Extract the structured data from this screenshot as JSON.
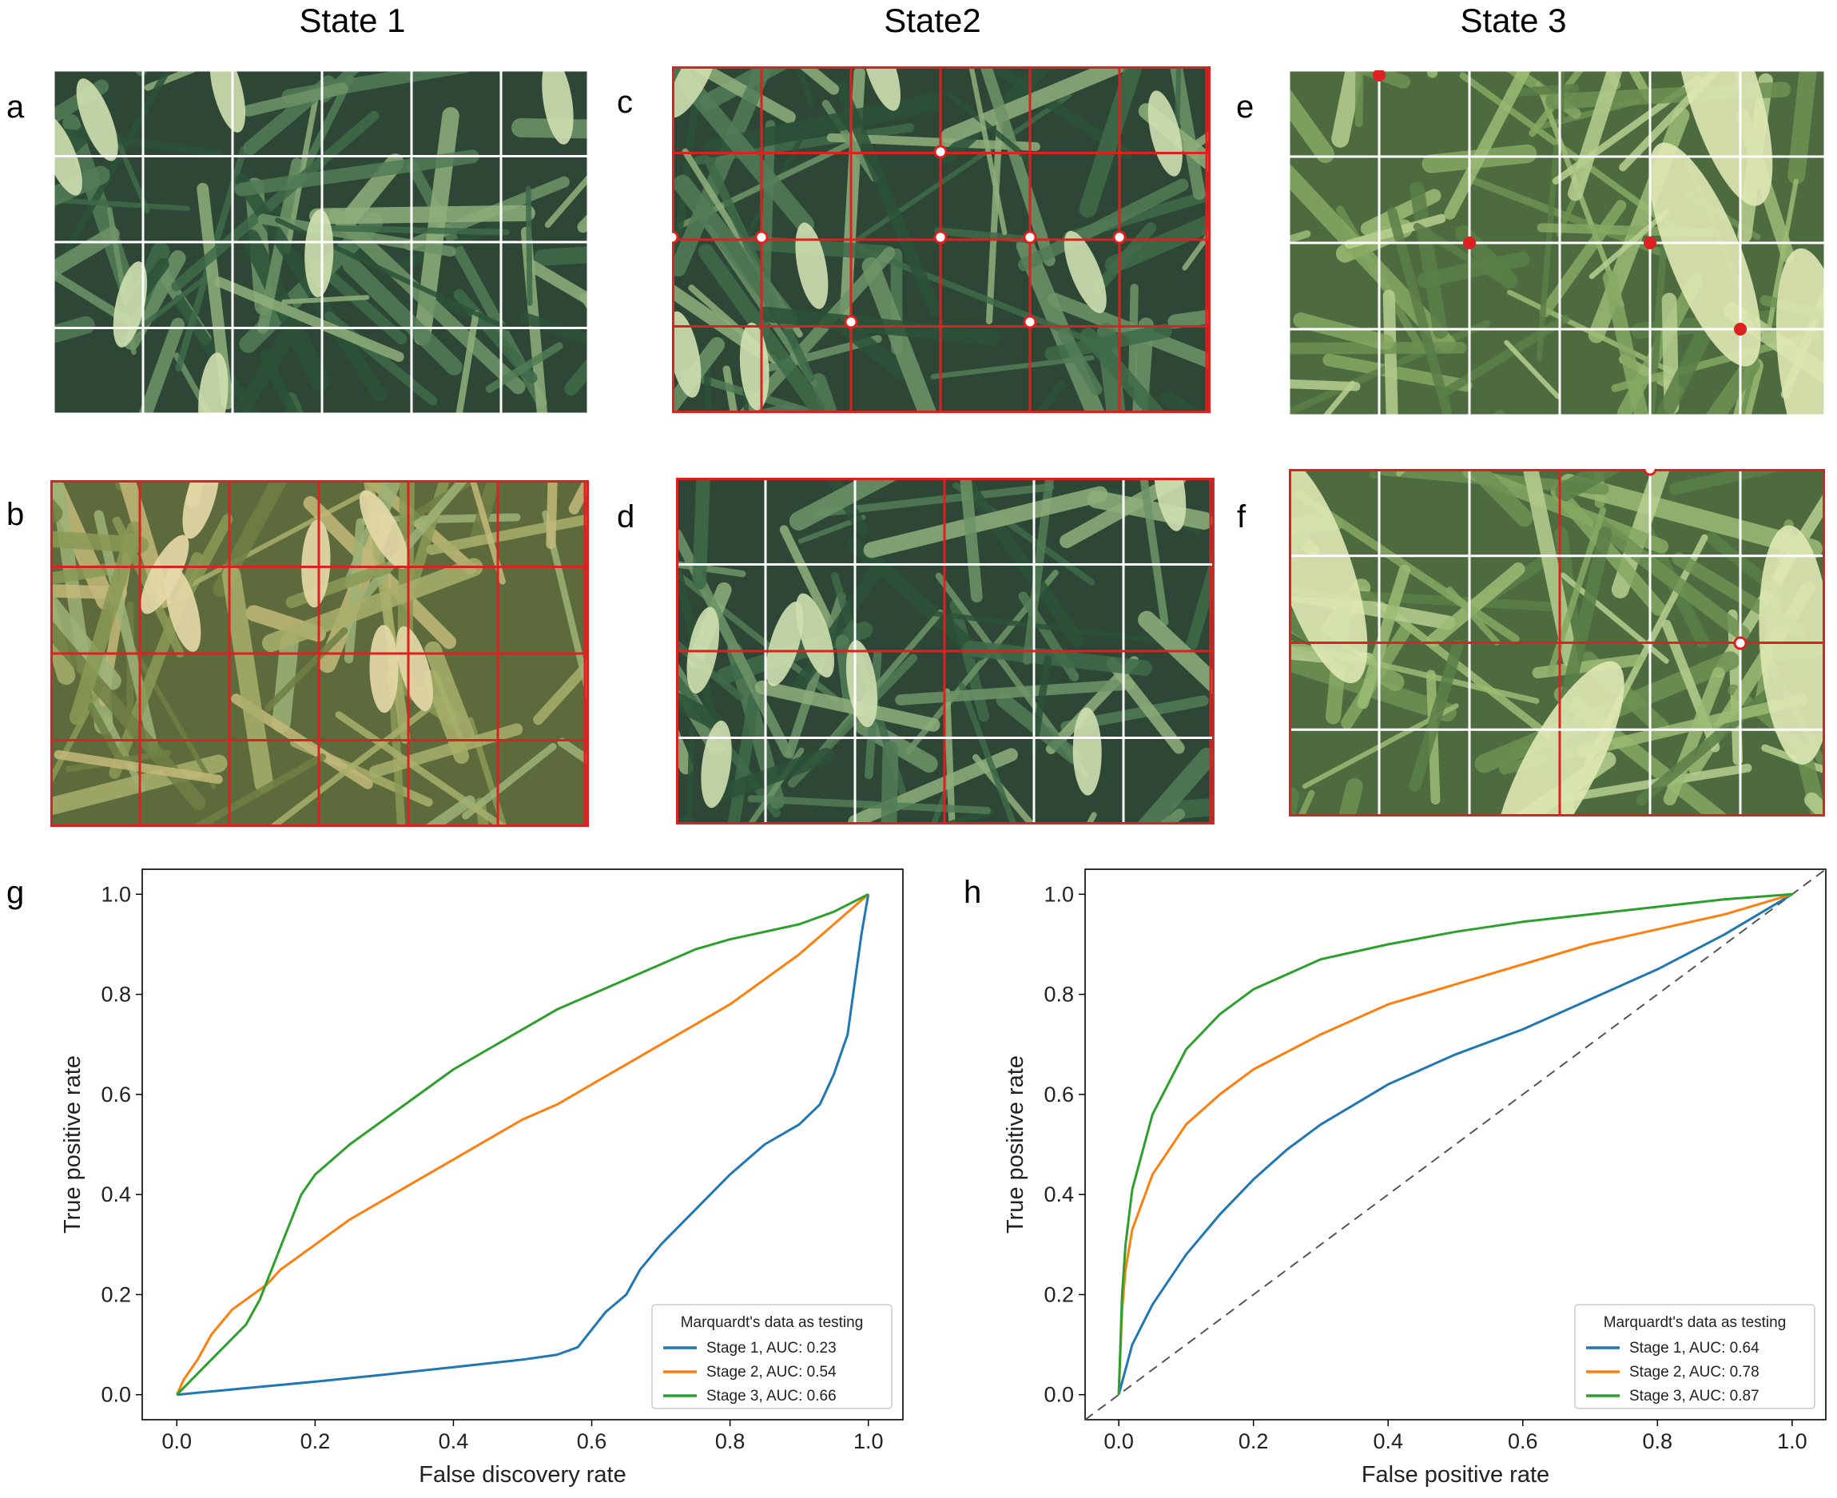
{
  "figure": {
    "state_titles": [
      "State 1",
      "State2",
      "State 3"
    ],
    "panel_letters": {
      "a": "a",
      "b": "b",
      "c": "c",
      "d": "d",
      "e": "e",
      "f": "f",
      "g": "g",
      "h": "h"
    },
    "colors": {
      "stage1": "#1f77b4",
      "stage2": "#ff7f0e",
      "stage3": "#2ca02c",
      "grid_white": "#ffffff",
      "grid_red": "#dd2020",
      "canopy_dark": "#27402f",
      "canopy_light": "#b9cf9a"
    },
    "photos": [
      {
        "id": "a",
        "grid": "white",
        "tone": "dark-canopy",
        "markers": "none"
      },
      {
        "id": "b",
        "grid": "red",
        "tone": "yellow-canopy",
        "markers": "none"
      },
      {
        "id": "c",
        "grid": "red",
        "tone": "dark-canopy",
        "markers": "open-circles"
      },
      {
        "id": "d",
        "grid": "mixed",
        "tone": "dark-canopy",
        "markers": "none"
      },
      {
        "id": "e",
        "grid": "white",
        "tone": "closeup-spike",
        "markers": "red-dots"
      },
      {
        "id": "f",
        "grid": "mixed",
        "tone": "closeup-spike",
        "markers": "open-circles"
      }
    ]
  },
  "chart_data": [
    {
      "id": "g",
      "type": "line",
      "title": "",
      "xlabel": "False discovery rate",
      "ylabel": "True positive rate",
      "xlim": [
        -0.05,
        1.05
      ],
      "ylim": [
        -0.05,
        1.05
      ],
      "xticks": [
        "0.0",
        "0.2",
        "0.4",
        "0.6",
        "0.8",
        "1.0"
      ],
      "yticks": [
        "0.0",
        "0.2",
        "0.4",
        "0.6",
        "0.8",
        "1.0"
      ],
      "grid": false,
      "diagonal": false,
      "legend_title": "Marquardt's data as testing",
      "legend_position": "lower-right",
      "series": [
        {
          "name": "Stage 1, AUC: 0.23",
          "x": [
            0,
            0.1,
            0.2,
            0.3,
            0.4,
            0.5,
            0.55,
            0.58,
            0.6,
            0.62,
            0.65,
            0.67,
            0.7,
            0.75,
            0.8,
            0.85,
            0.9,
            0.93,
            0.95,
            0.97,
            0.98,
            0.99,
            1.0
          ],
          "y": [
            0,
            0.013,
            0.026,
            0.04,
            0.055,
            0.07,
            0.08,
            0.095,
            0.13,
            0.165,
            0.2,
            0.25,
            0.3,
            0.37,
            0.44,
            0.5,
            0.54,
            0.58,
            0.64,
            0.72,
            0.82,
            0.92,
            1.0
          ]
        },
        {
          "name": "Stage 2, AUC: 0.54",
          "x": [
            0,
            0.01,
            0.03,
            0.05,
            0.08,
            0.1,
            0.13,
            0.15,
            0.2,
            0.25,
            0.3,
            0.35,
            0.4,
            0.45,
            0.5,
            0.55,
            0.6,
            0.65,
            0.7,
            0.75,
            0.8,
            0.85,
            0.9,
            0.95,
            1.0
          ],
          "y": [
            0,
            0.03,
            0.07,
            0.12,
            0.17,
            0.19,
            0.22,
            0.25,
            0.3,
            0.35,
            0.39,
            0.43,
            0.47,
            0.51,
            0.55,
            0.58,
            0.62,
            0.66,
            0.7,
            0.74,
            0.78,
            0.83,
            0.88,
            0.94,
            1.0
          ]
        },
        {
          "name": "Stage 3, AUC: 0.66",
          "x": [
            0,
            0.05,
            0.1,
            0.12,
            0.14,
            0.16,
            0.18,
            0.2,
            0.25,
            0.3,
            0.35,
            0.4,
            0.45,
            0.5,
            0.55,
            0.6,
            0.65,
            0.7,
            0.75,
            0.8,
            0.85,
            0.9,
            0.95,
            1.0
          ],
          "y": [
            0,
            0.07,
            0.14,
            0.19,
            0.26,
            0.33,
            0.4,
            0.44,
            0.5,
            0.55,
            0.6,
            0.65,
            0.69,
            0.73,
            0.77,
            0.8,
            0.83,
            0.86,
            0.89,
            0.91,
            0.925,
            0.94,
            0.965,
            1.0
          ]
        }
      ]
    },
    {
      "id": "h",
      "type": "line",
      "title": "",
      "xlabel": "False positive rate",
      "ylabel": "True positive rate",
      "xlim": [
        -0.05,
        1.05
      ],
      "ylim": [
        -0.05,
        1.05
      ],
      "xticks": [
        "0.0",
        "0.2",
        "0.4",
        "0.6",
        "0.8",
        "1.0"
      ],
      "yticks": [
        "0.0",
        "0.2",
        "0.4",
        "0.6",
        "0.8",
        "1.0"
      ],
      "grid": false,
      "diagonal": true,
      "legend_title": "Marquardt's data as testing",
      "legend_position": "lower-right",
      "series": [
        {
          "name": "Stage 1, AUC: 0.64",
          "x": [
            0,
            0.02,
            0.05,
            0.1,
            0.15,
            0.2,
            0.25,
            0.3,
            0.35,
            0.4,
            0.5,
            0.6,
            0.7,
            0.8,
            0.9,
            1.0
          ],
          "y": [
            0,
            0.1,
            0.18,
            0.28,
            0.36,
            0.43,
            0.49,
            0.54,
            0.58,
            0.62,
            0.68,
            0.73,
            0.79,
            0.85,
            0.92,
            1.0
          ]
        },
        {
          "name": "Stage 2, AUC: 0.78",
          "x": [
            0,
            0.005,
            0.01,
            0.02,
            0.05,
            0.1,
            0.15,
            0.2,
            0.3,
            0.4,
            0.5,
            0.6,
            0.7,
            0.8,
            0.9,
            1.0
          ],
          "y": [
            0,
            0.17,
            0.25,
            0.33,
            0.44,
            0.54,
            0.6,
            0.65,
            0.72,
            0.78,
            0.82,
            0.86,
            0.9,
            0.93,
            0.96,
            1.0
          ]
        },
        {
          "name": "Stage 3, AUC: 0.87",
          "x": [
            0,
            0.005,
            0.01,
            0.02,
            0.05,
            0.1,
            0.15,
            0.2,
            0.25,
            0.3,
            0.4,
            0.5,
            0.6,
            0.7,
            0.8,
            0.9,
            1.0
          ],
          "y": [
            0,
            0.2,
            0.3,
            0.41,
            0.56,
            0.69,
            0.76,
            0.81,
            0.84,
            0.87,
            0.9,
            0.925,
            0.945,
            0.96,
            0.975,
            0.99,
            1.0
          ]
        }
      ]
    }
  ]
}
